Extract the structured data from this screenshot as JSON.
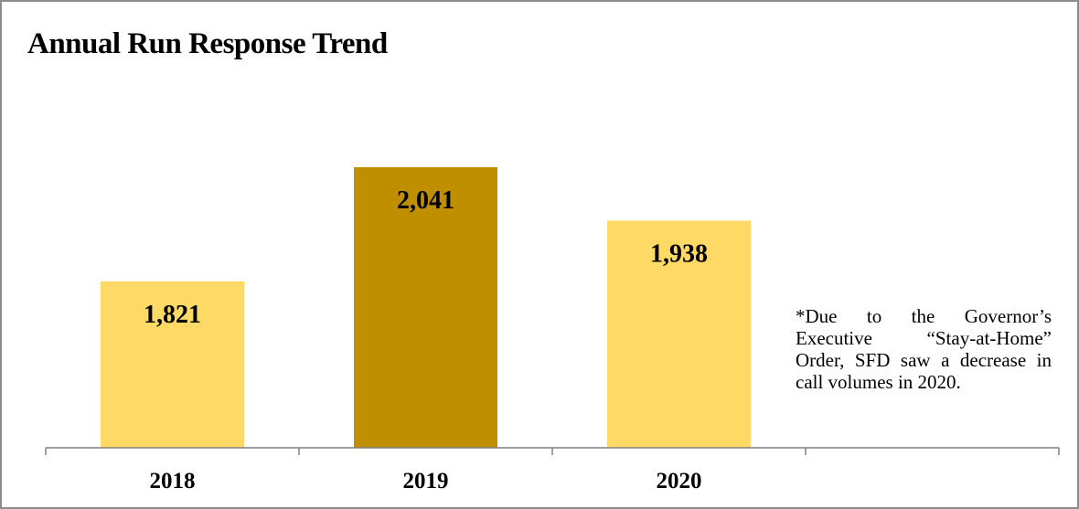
{
  "chart_data": {
    "type": "bar",
    "title": "Annual Run Response Trend",
    "categories": [
      "2018",
      "2019",
      "2020"
    ],
    "values": [
      1821,
      2041,
      1938
    ],
    "value_labels": [
      "1,821",
      "2,041",
      "1,938"
    ],
    "bar_colors": [
      "#ffd966",
      "#bf8f00",
      "#ffd966"
    ],
    "axis_color": "#808080",
    "grid": false,
    "legend": "none",
    "note": "*Due to the Governor’s Executive “Stay-at-Home” Order, SFD saw a decrease in call volumes in 2020."
  }
}
